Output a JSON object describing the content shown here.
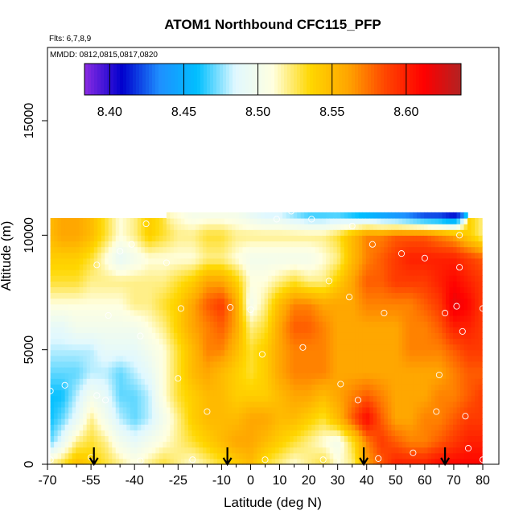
{
  "chart_data": {
    "type": "heatmap",
    "title": "ATOM1 Northbound CFC115_PFP",
    "subtitle_flights": "Flts: 6,7,8,9",
    "subtitle_dates": "MMDD: 0812,0815,0817,0820",
    "xlabel": "Latitude (deg N)",
    "ylabel": "Altitude (m)",
    "xlim": [
      -70,
      80
    ],
    "ylim": [
      0,
      18000
    ],
    "x_ticks": [
      -70,
      -55,
      -40,
      -25,
      -10,
      0,
      10,
      20,
      30,
      40,
      50,
      60,
      70,
      80
    ],
    "x_minor_ticks": [
      -65,
      -60,
      -50,
      -45,
      -35,
      -30,
      -20,
      -15,
      -5,
      5,
      15,
      25,
      35,
      45,
      55,
      65,
      75
    ],
    "y_ticks": [
      0,
      5000,
      10000,
      15000
    ],
    "colorbar": {
      "min": 8.383,
      "max": 8.637,
      "ticks": [
        8.4,
        8.45,
        8.5,
        8.55,
        8.6
      ],
      "tick_labels": [
        "8.40",
        "8.45",
        "8.50",
        "8.55",
        "8.60"
      ],
      "colors": [
        "#8b2be2",
        "#0000cd",
        "#1e90ff",
        "#00bfff",
        "#e0f8ff",
        "#ffffe0",
        "#ffd700",
        "#ffa500",
        "#ff4500",
        "#ff0000",
        "#b22222"
      ]
    },
    "flight_arrow_latitudes": [
      -54,
      -8,
      39,
      67
    ],
    "grid_x": [
      -69,
      -65,
      -60,
      -55,
      -50,
      -45,
      -40,
      -35,
      -30,
      -25,
      -20,
      -15,
      -10,
      -5,
      0,
      5,
      10,
      15,
      20,
      25,
      30,
      35,
      40,
      45,
      50,
      55,
      60,
      65,
      70,
      75,
      80
    ],
    "grid_y": [
      0,
      1000,
      2000,
      3000,
      4000,
      5000,
      6000,
      7000,
      8000,
      9000,
      10000,
      11000
    ],
    "grid_values": [
      [
        8.52,
        8.53,
        8.55,
        8.54,
        8.53,
        8.52,
        8.51,
        8.52,
        8.53,
        8.52,
        8.51,
        8.52,
        8.53,
        8.54,
        8.55,
        8.53,
        8.52,
        8.51,
        8.52,
        8.53,
        8.51,
        8.52,
        8.56,
        8.58,
        8.6,
        8.6,
        8.6,
        8.61,
        8.61,
        8.61,
        8.61
      ],
      [
        8.47,
        8.49,
        8.52,
        8.53,
        8.52,
        8.5,
        8.49,
        8.5,
        8.51,
        8.52,
        8.53,
        8.54,
        8.55,
        8.56,
        8.56,
        8.55,
        8.54,
        8.53,
        8.52,
        8.51,
        8.5,
        8.53,
        8.57,
        8.59,
        8.58,
        8.57,
        8.57,
        8.58,
        8.59,
        8.6,
        8.6
      ],
      [
        8.46,
        8.47,
        8.49,
        8.52,
        8.5,
        8.48,
        8.47,
        8.48,
        8.5,
        8.52,
        8.54,
        8.55,
        8.55,
        8.55,
        8.56,
        8.56,
        8.55,
        8.55,
        8.54,
        8.53,
        8.55,
        8.58,
        8.61,
        8.58,
        8.56,
        8.56,
        8.57,
        8.57,
        8.58,
        8.59,
        8.59
      ],
      [
        8.46,
        8.46,
        8.48,
        8.5,
        8.49,
        8.47,
        8.47,
        8.48,
        8.51,
        8.53,
        8.54,
        8.55,
        8.55,
        8.54,
        8.54,
        8.54,
        8.55,
        8.56,
        8.56,
        8.55,
        8.56,
        8.57,
        8.58,
        8.57,
        8.56,
        8.56,
        8.56,
        8.57,
        8.57,
        8.58,
        8.59
      ],
      [
        8.47,
        8.47,
        8.47,
        8.48,
        8.48,
        8.47,
        8.48,
        8.49,
        8.51,
        8.53,
        8.55,
        8.56,
        8.55,
        8.54,
        8.53,
        8.54,
        8.56,
        8.57,
        8.57,
        8.57,
        8.56,
        8.56,
        8.56,
        8.56,
        8.56,
        8.56,
        8.56,
        8.56,
        8.57,
        8.58,
        8.58
      ],
      [
        8.48,
        8.48,
        8.48,
        8.48,
        8.49,
        8.49,
        8.49,
        8.5,
        8.51,
        8.53,
        8.55,
        8.57,
        8.57,
        8.55,
        8.53,
        8.54,
        8.56,
        8.57,
        8.57,
        8.57,
        8.56,
        8.56,
        8.56,
        8.56,
        8.56,
        8.57,
        8.57,
        8.57,
        8.58,
        8.59,
        8.59
      ],
      [
        8.49,
        8.49,
        8.5,
        8.5,
        8.5,
        8.5,
        8.5,
        8.51,
        8.52,
        8.54,
        8.56,
        8.57,
        8.58,
        8.56,
        8.52,
        8.53,
        8.56,
        8.58,
        8.58,
        8.57,
        8.56,
        8.56,
        8.56,
        8.56,
        8.56,
        8.57,
        8.57,
        8.58,
        8.6,
        8.6,
        8.59
      ],
      [
        8.51,
        8.51,
        8.51,
        8.51,
        8.51,
        8.51,
        8.52,
        8.52,
        8.53,
        8.54,
        8.56,
        8.58,
        8.59,
        8.56,
        8.5,
        8.52,
        8.55,
        8.57,
        8.57,
        8.56,
        8.56,
        8.56,
        8.57,
        8.57,
        8.57,
        8.57,
        8.58,
        8.59,
        8.62,
        8.61,
        8.59
      ],
      [
        8.53,
        8.53,
        8.53,
        8.52,
        8.52,
        8.52,
        8.52,
        8.52,
        8.52,
        8.53,
        8.54,
        8.56,
        8.56,
        8.54,
        8.51,
        8.51,
        8.52,
        8.53,
        8.52,
        8.52,
        8.54,
        8.56,
        8.58,
        8.58,
        8.59,
        8.59,
        8.59,
        8.6,
        8.61,
        8.6,
        8.59
      ],
      [
        8.54,
        8.54,
        8.54,
        8.53,
        8.51,
        8.49,
        8.5,
        8.51,
        8.51,
        8.51,
        8.51,
        8.52,
        8.52,
        8.51,
        8.5,
        8.5,
        8.5,
        8.5,
        8.5,
        8.51,
        8.52,
        8.55,
        8.57,
        8.58,
        8.59,
        8.6,
        8.6,
        8.6,
        8.6,
        8.59,
        8.58
      ],
      [
        8.55,
        8.56,
        8.56,
        8.55,
        8.53,
        8.51,
        8.52,
        8.54,
        8.53,
        8.52,
        8.52,
        8.53,
        8.53,
        8.52,
        8.52,
        8.52,
        8.52,
        8.52,
        8.52,
        8.52,
        8.53,
        8.55,
        8.57,
        8.57,
        8.58,
        8.58,
        8.58,
        8.57,
        8.56,
        8.54,
        8.52
      ],
      [
        null,
        null,
        null,
        null,
        null,
        null,
        null,
        null,
        null,
        8.51,
        8.5,
        8.5,
        8.5,
        8.5,
        8.49,
        8.48,
        8.48,
        8.47,
        8.46,
        8.46,
        8.46,
        8.45,
        8.44,
        8.43,
        8.42,
        8.41,
        8.4,
        8.4,
        8.39,
        null,
        null
      ]
    ],
    "samples": [
      {
        "lat": -69,
        "alt": 3200
      },
      {
        "lat": -64,
        "alt": 3450
      },
      {
        "lat": -53,
        "alt": 3000
      },
      {
        "lat": -50,
        "alt": 2800
      },
      {
        "lat": -53,
        "alt": 8700
      },
      {
        "lat": -49,
        "alt": 6500
      },
      {
        "lat": -45,
        "alt": 9300
      },
      {
        "lat": -41,
        "alt": 9600
      },
      {
        "lat": -38,
        "alt": 5600
      },
      {
        "lat": -36,
        "alt": 10500
      },
      {
        "lat": -29,
        "alt": 8800
      },
      {
        "lat": -24,
        "alt": 6800
      },
      {
        "lat": -25,
        "alt": 3750
      },
      {
        "lat": -21,
        "alt": 11200
      },
      {
        "lat": -7,
        "alt": 6850
      },
      {
        "lat": 0,
        "alt": 6750
      },
      {
        "lat": 9,
        "alt": 10700
      },
      {
        "lat": 14,
        "alt": 11050
      },
      {
        "lat": 18,
        "alt": 5100
      },
      {
        "lat": 21,
        "alt": 10700
      },
      {
        "lat": 27,
        "alt": 8000
      },
      {
        "lat": 31,
        "alt": 3500
      },
      {
        "lat": 34,
        "alt": 7300
      },
      {
        "lat": 35,
        "alt": 10400
      },
      {
        "lat": 37,
        "alt": 2800
      },
      {
        "lat": 42,
        "alt": 9600
      },
      {
        "lat": 46,
        "alt": 6600
      },
      {
        "lat": 52,
        "alt": 9200
      },
      {
        "lat": 56,
        "alt": 500
      },
      {
        "lat": 60,
        "alt": 9000
      },
      {
        "lat": 65,
        "alt": 3900
      },
      {
        "lat": 67,
        "alt": 6600
      },
      {
        "lat": 71,
        "alt": 6900
      },
      {
        "lat": 72,
        "alt": 8600
      },
      {
        "lat": 72,
        "alt": 10000
      },
      {
        "lat": 73,
        "alt": 5800
      },
      {
        "lat": 74,
        "alt": 2100
      },
      {
        "lat": 75,
        "alt": 700
      },
      {
        "lat": 80,
        "alt": 6800
      },
      {
        "lat": -69,
        "alt": 200
      },
      {
        "lat": -55,
        "alt": 300
      },
      {
        "lat": -38,
        "alt": 150
      },
      {
        "lat": -20,
        "alt": 200
      },
      {
        "lat": 5,
        "alt": 200
      },
      {
        "lat": 25,
        "alt": 200
      },
      {
        "lat": 44,
        "alt": 250
      },
      {
        "lat": 80,
        "alt": 200
      },
      {
        "lat": 71,
        "alt": 11200
      },
      {
        "lat": -68,
        "alt": 10900
      },
      {
        "lat": -15,
        "alt": 2300
      },
      {
        "lat": 4,
        "alt": 4800
      },
      {
        "lat": 64,
        "alt": 2300
      }
    ]
  }
}
